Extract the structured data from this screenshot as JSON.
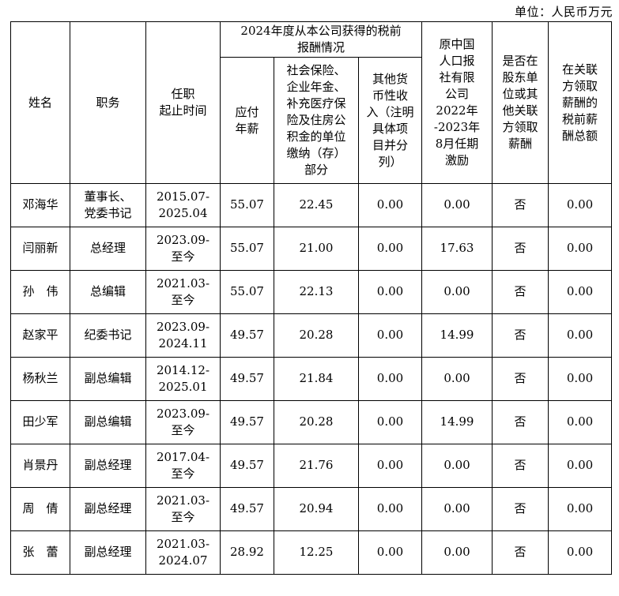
{
  "page": {
    "unit_note": "单位：人民币万元"
  },
  "table": {
    "group_header": "2024年度从本公司获得的税前\n报酬情况",
    "columns": {
      "name": "姓名",
      "position": "职务",
      "term": "任职\n起止时间",
      "payable_salary": "应付\n年薪",
      "social_insurance": "社会保险、\n企业年金、\n补充医疗保\n险及住房公\n积金的单位\n缴纳（存）\n部分",
      "other_income": "其他货\n币性收\n入（注明\n具体项\n目并分\n列）",
      "former_company_incentive": "原中国\n人口报\n社有限\n公司\n2022年\n-2023年\n8月任期\n激励",
      "shareholder_related_pay": "是否在\n股东单\n位或其\n他关联\n方领取\n薪酬",
      "related_pretax_total": "在关联\n方领取\n薪酬的\n税前薪\n酬总额"
    },
    "rows": [
      {
        "name": "邓海华",
        "position": "董事长、\n党委书记",
        "term": "2015.07-\n2025.04",
        "payable_salary": "55.07",
        "social_insurance": "22.45",
        "other_income": "0.00",
        "incentive": "0.00",
        "related_pay": "否",
        "related_total": "0.00"
      },
      {
        "name": "闫丽新",
        "position": "总经理",
        "term": "2023.09-\n至今",
        "payable_salary": "55.07",
        "social_insurance": "21.00",
        "other_income": "0.00",
        "incentive": "17.63",
        "related_pay": "否",
        "related_total": "0.00"
      },
      {
        "name": "孙　伟",
        "position": "总编辑",
        "term": "2021.03-\n至今",
        "payable_salary": "55.07",
        "social_insurance": "22.13",
        "other_income": "0.00",
        "incentive": "0.00",
        "related_pay": "否",
        "related_total": "0.00"
      },
      {
        "name": "赵家平",
        "position": "纪委书记",
        "term": "2023.09-\n2024.11",
        "payable_salary": "49.57",
        "social_insurance": "20.28",
        "other_income": "0.00",
        "incentive": "14.99",
        "related_pay": "否",
        "related_total": "0.00"
      },
      {
        "name": "杨秋兰",
        "position": "副总编辑",
        "term": "2014.12-\n2025.01",
        "payable_salary": "49.57",
        "social_insurance": "21.84",
        "other_income": "0.00",
        "incentive": "0.00",
        "related_pay": "否",
        "related_total": "0.00"
      },
      {
        "name": "田少军",
        "position": "副总编辑",
        "term": "2023.09-\n至今",
        "payable_salary": "49.57",
        "social_insurance": "20.28",
        "other_income": "0.00",
        "incentive": "14.99",
        "related_pay": "否",
        "related_total": "0.00"
      },
      {
        "name": "肖景丹",
        "position": "副总经理",
        "term": "2017.04-\n至今",
        "payable_salary": "49.57",
        "social_insurance": "21.76",
        "other_income": "0.00",
        "incentive": "0.00",
        "related_pay": "否",
        "related_total": "0.00"
      },
      {
        "name": "周　倩",
        "position": "副总经理",
        "term": "2021.03-\n至今",
        "payable_salary": "49.57",
        "social_insurance": "20.94",
        "other_income": "0.00",
        "incentive": "0.00",
        "related_pay": "否",
        "related_total": "0.00"
      },
      {
        "name": "张　蕾",
        "position": "副总经理",
        "term": "2021.03-\n2024.07",
        "payable_salary": "28.92",
        "social_insurance": "12.25",
        "other_income": "0.00",
        "incentive": "0.00",
        "related_pay": "否",
        "related_total": "0.00"
      }
    ]
  }
}
